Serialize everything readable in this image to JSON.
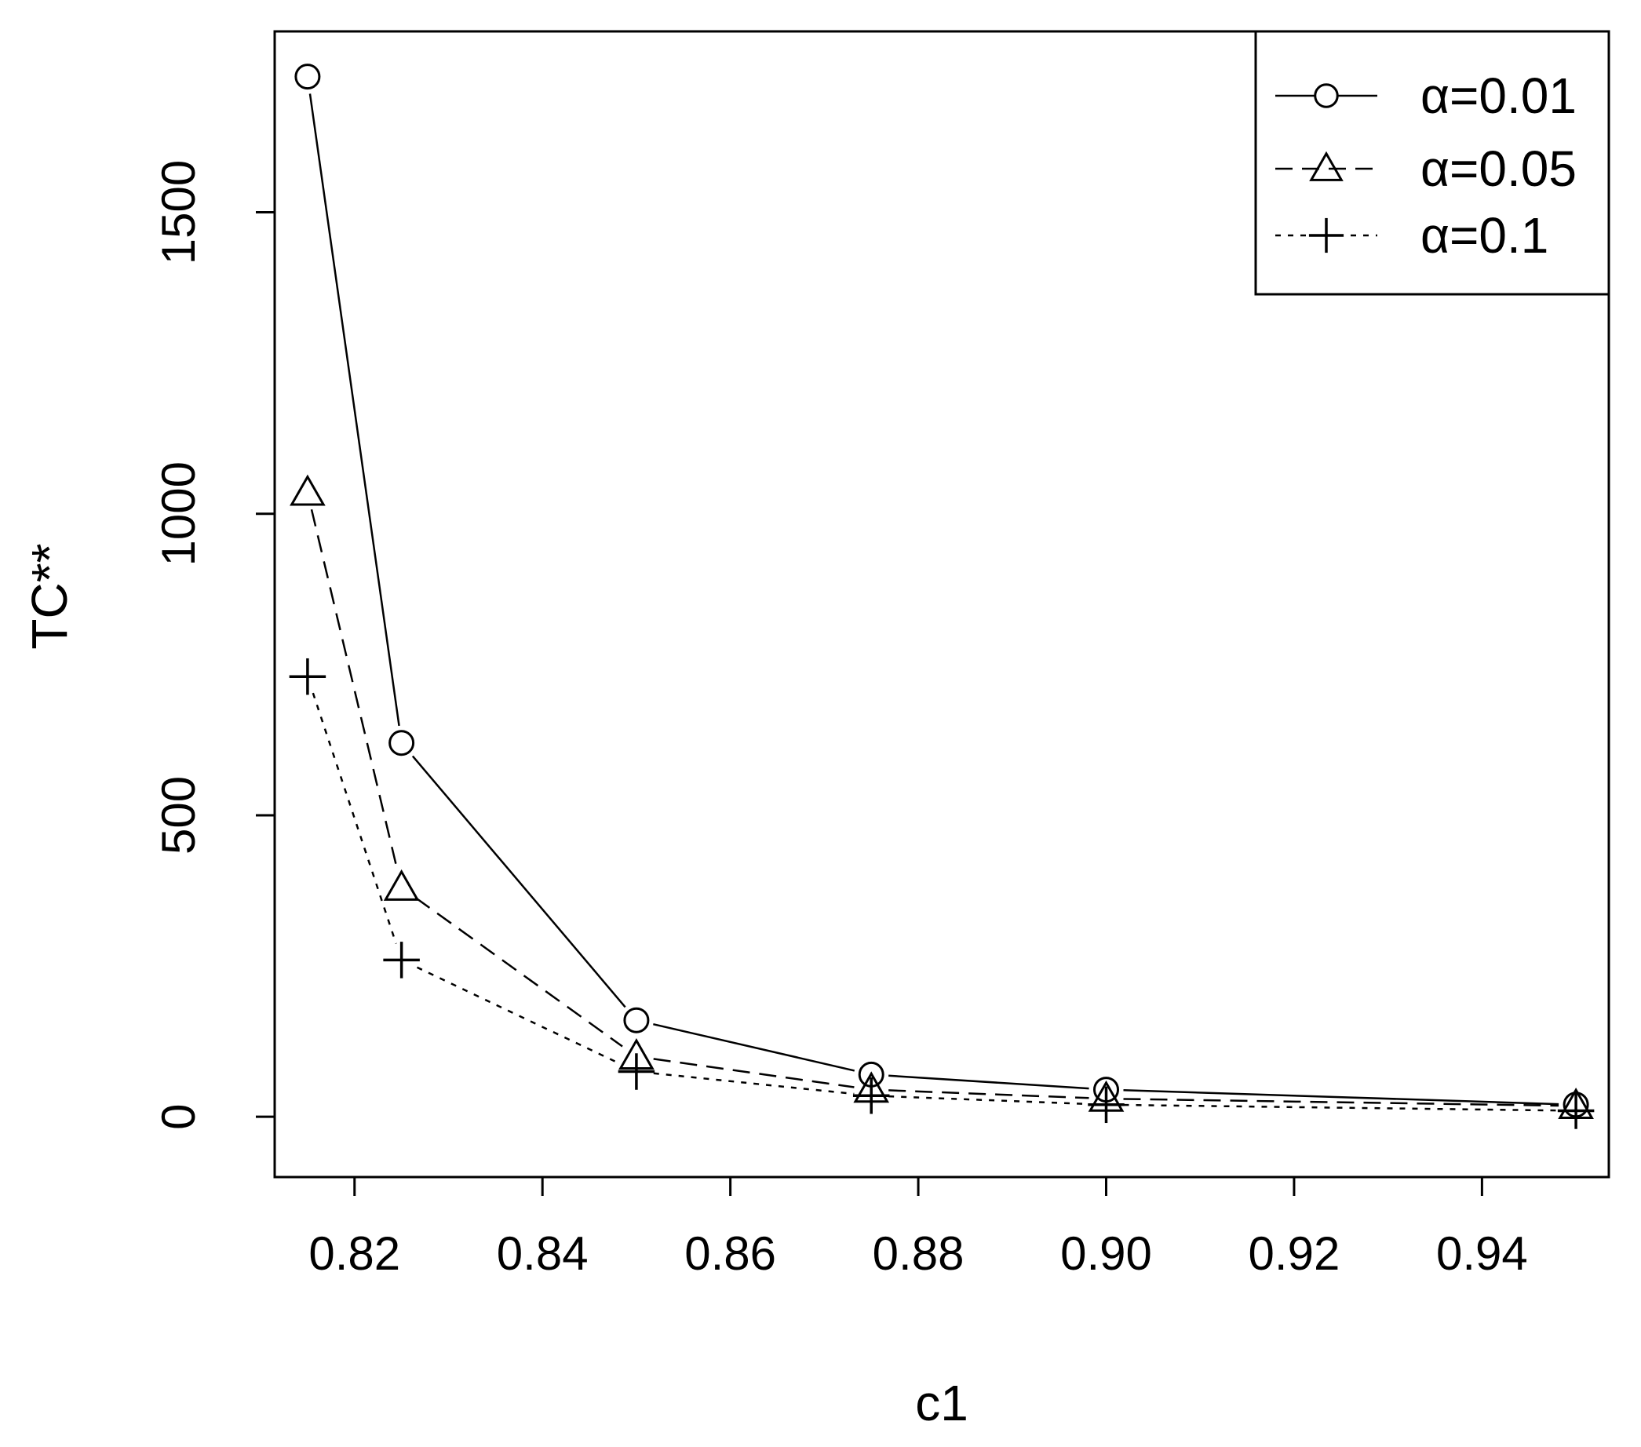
{
  "chart_data": {
    "type": "line",
    "xlabel": "c1",
    "ylabel": "TC**",
    "xlim": [
      0.8115,
      0.9535
    ],
    "ylim": [
      -100,
      1800
    ],
    "x_ticks": [
      "0.82",
      "0.84",
      "0.86",
      "0.88",
      "0.90",
      "0.92",
      "0.94"
    ],
    "y_ticks": [
      "0",
      "500",
      "1000",
      "1500"
    ],
    "x": [
      0.815,
      0.825,
      0.85,
      0.875,
      0.9,
      0.95
    ],
    "legend_position": "top-right",
    "grid": false,
    "series": [
      {
        "name": "α=0.01",
        "marker": "circle",
        "line": "solid",
        "values": [
          1725,
          620,
          160,
          70,
          45,
          20
        ]
      },
      {
        "name": "α=0.05",
        "marker": "triangle",
        "line": "dashed",
        "values": [
          1035,
          380,
          100,
          45,
          30,
          18
        ]
      },
      {
        "name": "α=0.1",
        "marker": "plus",
        "line": "dotted",
        "values": [
          730,
          260,
          75,
          35,
          20,
          10
        ]
      }
    ]
  }
}
